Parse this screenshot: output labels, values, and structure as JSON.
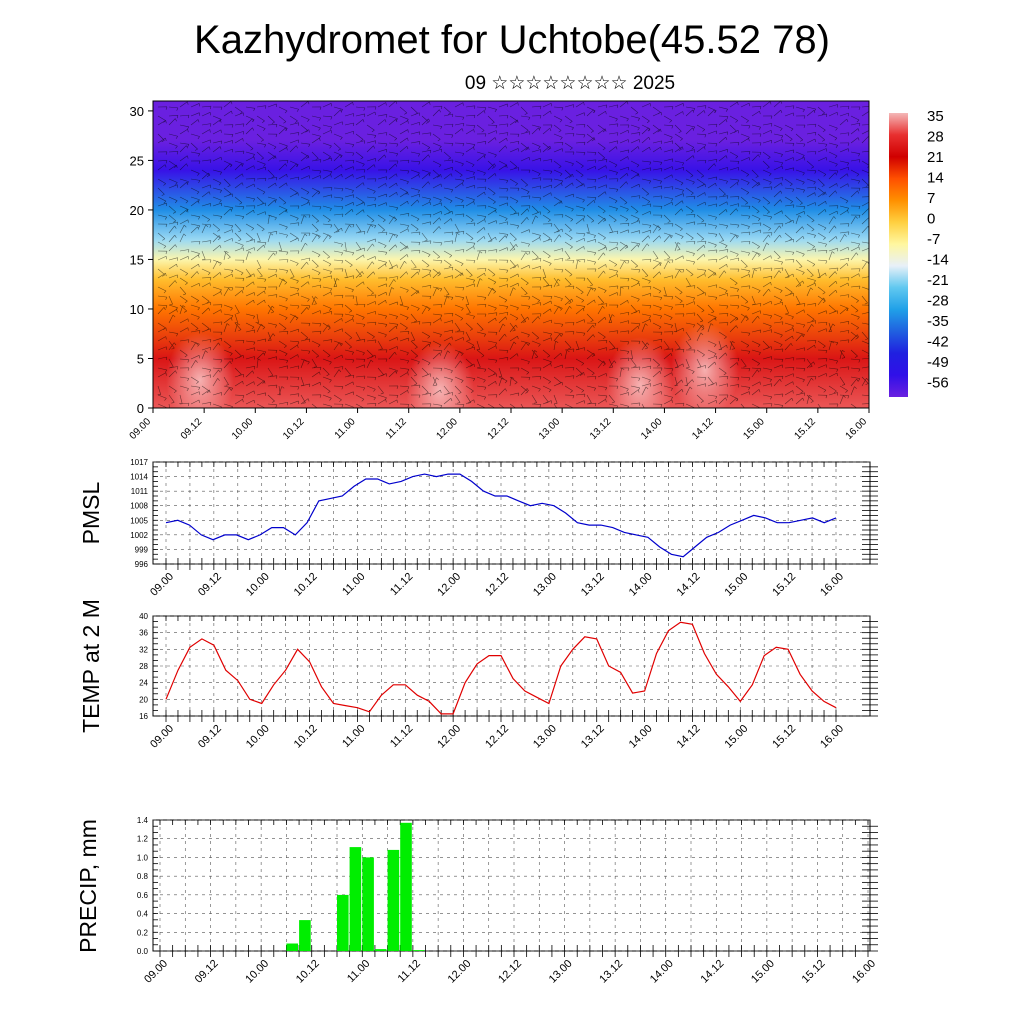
{
  "header": {
    "title": "Kazhydromet for Uchtobe(45.52 78)",
    "subtitle": "09 ☆☆☆☆☆☆☆☆ 2025"
  },
  "chart_data": [
    {
      "type": "heatmap",
      "name": "vertical-cross-section",
      "x_ticks": [
        "09.00",
        "09.12",
        "10.00",
        "10.12",
        "11.00",
        "11.12",
        "12.00",
        "12.12",
        "13.00",
        "13.12",
        "14.00",
        "14.12",
        "15.00",
        "15.12",
        "16.00"
      ],
      "y_ticks": [
        "0",
        "5",
        "10",
        "15",
        "20",
        "25",
        "30"
      ],
      "ylim": [
        0,
        31
      ],
      "colorbar": {
        "labels": [
          "35",
          "28",
          "21",
          "14",
          "7",
          "0",
          "-7",
          "-14",
          "-21",
          "-28",
          "-35",
          "-42",
          "-49",
          "-56"
        ],
        "colors": [
          "#f4b8b8",
          "#e83030",
          "#d00000",
          "#ff5000",
          "#ff9000",
          "#ffd040",
          "#fff7a0",
          "#e8f0f8",
          "#60c8f0",
          "#20a0e8",
          "#2060e0",
          "#2020e0",
          "#3010e8",
          "#6a20e0"
        ]
      },
      "profile": [
        {
          "level": 0,
          "value": 30
        },
        {
          "level": 5,
          "value": 24
        },
        {
          "level": 10,
          "value": 10
        },
        {
          "level": 13,
          "value": 2
        },
        {
          "level": 15,
          "value": -8
        },
        {
          "level": 17,
          "value": -18
        },
        {
          "level": 20,
          "value": -30
        },
        {
          "level": 24,
          "value": -50
        },
        {
          "level": 27,
          "value": -58
        },
        {
          "level": 31,
          "value": -60
        }
      ]
    },
    {
      "type": "line",
      "name": "pmsl",
      "ylabel": "PMSL",
      "ylim": [
        996,
        1017
      ],
      "y_ticks": [
        "996",
        "999",
        "1002",
        "1005",
        "1008",
        "1011",
        "1014",
        "1017"
      ],
      "x_ticks": [
        "09.00",
        "09.12",
        "10.00",
        "10.12",
        "11.00",
        "11.12",
        "12.00",
        "12.12",
        "13.00",
        "13.12",
        "14.00",
        "14.12",
        "15.00",
        "15.12",
        "16.00"
      ],
      "color": "#0000cc",
      "values": [
        1004.5,
        1005,
        1004,
        1002,
        1001,
        1002,
        1002,
        1001,
        1002,
        1003.5,
        1003.5,
        1002,
        1004.5,
        1009,
        1009.5,
        1010,
        1012,
        1013.5,
        1013.5,
        1012.5,
        1013,
        1014,
        1014.5,
        1014,
        1014.5,
        1014.5,
        1013,
        1011,
        1010,
        1010,
        1009,
        1008,
        1008.5,
        1008,
        1006.5,
        1004.5,
        1004,
        1004,
        1003.5,
        1002.5,
        1002,
        1001.5,
        999.5,
        998,
        997.5,
        999.5,
        1001.5,
        1002.5,
        1004,
        1005,
        1006,
        1005.5,
        1004.5,
        1004.5,
        1005,
        1005.5,
        1004.5,
        1005.5
      ]
    },
    {
      "type": "line",
      "name": "temp",
      "ylabel": "TEMP at 2 M",
      "ylim": [
        16,
        40
      ],
      "y_ticks": [
        "16",
        "20",
        "24",
        "28",
        "32",
        "36",
        "40"
      ],
      "x_ticks": [
        "09.00",
        "09.12",
        "10.00",
        "10.12",
        "11.00",
        "11.12",
        "12.00",
        "12.12",
        "13.00",
        "13.12",
        "14.00",
        "14.12",
        "15.00",
        "15.12",
        "16.00"
      ],
      "color": "#e00000",
      "values": [
        20,
        27,
        32.5,
        34.5,
        33,
        27,
        24.5,
        20,
        19,
        23.5,
        27,
        32,
        29,
        23,
        19,
        18.5,
        18,
        17,
        21,
        23.5,
        23.5,
        21,
        19.5,
        16.5,
        16.5,
        24,
        28.5,
        30.5,
        30.5,
        25,
        22,
        20.5,
        19,
        28,
        32,
        35,
        34.5,
        28,
        26.5,
        21.5,
        22,
        31,
        36.5,
        38.5,
        38,
        31,
        26,
        23,
        19.5,
        23.5,
        30.5,
        32.5,
        32,
        26,
        22,
        19.5,
        18
      ]
    },
    {
      "type": "bar",
      "name": "precip",
      "ylabel": "PRECIP, mm",
      "ylim": [
        0,
        1.4
      ],
      "y_ticks": [
        "0.0",
        "0.2",
        "0.4",
        "0.6",
        "0.8",
        "1.0",
        "1.2",
        "1.4"
      ],
      "x_ticks": [
        "09.00",
        "09.12",
        "10.00",
        "10.12",
        "11.00",
        "11.12",
        "12.00",
        "12.12",
        "13.00",
        "13.12",
        "14.00",
        "14.12",
        "15.00",
        "15.12",
        "16.00"
      ],
      "color": "#00ee00",
      "bars": [
        {
          "step": 10,
          "value": 0.08
        },
        {
          "step": 11,
          "value": 0.33
        },
        {
          "step": 14,
          "value": 0.6
        },
        {
          "step": 15,
          "value": 1.11
        },
        {
          "step": 16,
          "value": 1.0
        },
        {
          "step": 17,
          "value": 0.02
        },
        {
          "step": 18,
          "value": 1.08
        },
        {
          "step": 19,
          "value": 1.37
        },
        {
          "step": 20,
          "value": 0.01
        }
      ]
    }
  ]
}
